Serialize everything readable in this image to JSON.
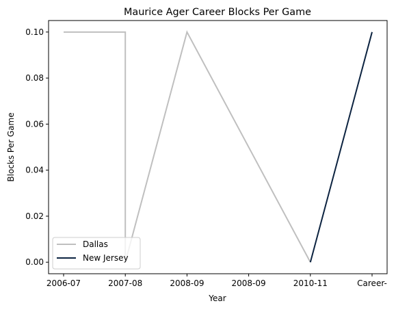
{
  "chart_data": {
    "type": "line",
    "title": "Maurice Ager Career Blocks Per Game",
    "xlabel": "Year",
    "ylabel": "Blocks Per Game",
    "categories": [
      "2006-07",
      "2007-08",
      "2008-09",
      "2008-09",
      "2010-11",
      "Career-"
    ],
    "ylim": [
      -0.005,
      0.105
    ],
    "yticks": [
      "0.00",
      "0.02",
      "0.04",
      "0.06",
      "0.08",
      "0.10"
    ],
    "ytick_values": [
      0.0,
      0.02,
      0.04,
      0.06,
      0.08,
      0.1
    ],
    "grid": false,
    "legend_position": "lower-left",
    "series": [
      {
        "name": "Dallas",
        "color": "#bfbfbf",
        "points": [
          {
            "x": "2006-07",
            "y": 0.1
          },
          {
            "x": "2007-08",
            "y": 0.1
          },
          {
            "x": "2007-08",
            "y": 0.0
          },
          {
            "x": "2008-09",
            "y": 0.1
          },
          {
            "x": "2010-11",
            "y": 0.0
          }
        ]
      },
      {
        "name": "New Jersey",
        "color": "#0c2340",
        "points": [
          {
            "x": "2010-11",
            "y": 0.0
          },
          {
            "x": "Career-",
            "y": 0.1
          }
        ]
      }
    ]
  }
}
